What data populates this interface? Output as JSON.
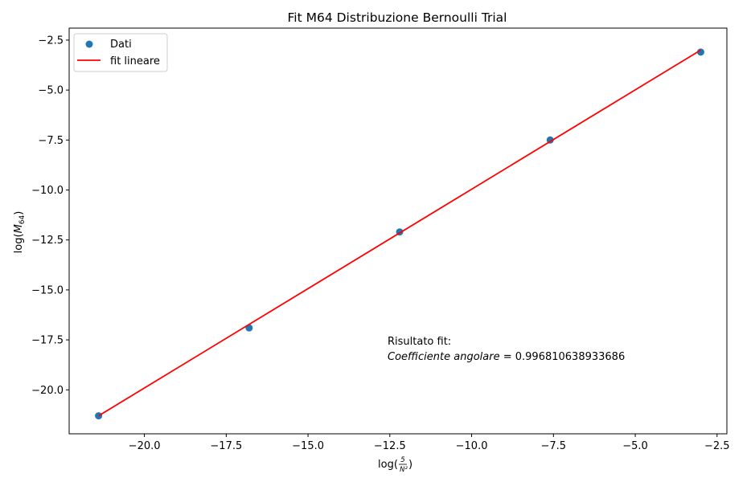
{
  "chart_data": {
    "type": "scatter",
    "title": "Fit M64 Distribuzione Bernoulli Trial",
    "xlabel": "log(5/N²)",
    "ylabel": "log(M64)",
    "xlim": [
      -22.3,
      -2.2
    ],
    "ylim": [
      -22.2,
      -1.9
    ],
    "x_ticks": [
      -20.0,
      -17.5,
      -15.0,
      -12.5,
      -10.0,
      -7.5,
      -5.0,
      -2.5
    ],
    "x_tick_labels": [
      "−20.0",
      "−17.5",
      "−15.0",
      "−12.5",
      "−10.0",
      "−7.5",
      "−5.0",
      "−2.5"
    ],
    "y_ticks": [
      -2.5,
      -5.0,
      -7.5,
      -10.0,
      -12.5,
      -15.0,
      -17.5,
      -20.0
    ],
    "y_tick_labels": [
      "−2.5",
      "−5.0",
      "−7.5",
      "−10.0",
      "−12.5",
      "−15.0",
      "−17.5",
      "−20.0"
    ],
    "grid": false,
    "legend_position": "top-left",
    "series": [
      {
        "name": "Dati",
        "kind": "scatter",
        "color": "#1f77b4",
        "x": [
          -21.4,
          -16.8,
          -12.2,
          -7.6,
          -3.0
        ],
        "y": [
          -21.3,
          -16.9,
          -12.1,
          -7.5,
          -3.1
        ]
      },
      {
        "name": "fit lineare",
        "kind": "line",
        "color": "#ff0000",
        "x": [
          -21.4,
          -3.0
        ],
        "y": [
          -21.3,
          -3.0
        ]
      }
    ],
    "annotation": {
      "line1": "Risultato fit:",
      "label": "Coefficiente angolare",
      "value": " = 0.996810638933686"
    }
  }
}
